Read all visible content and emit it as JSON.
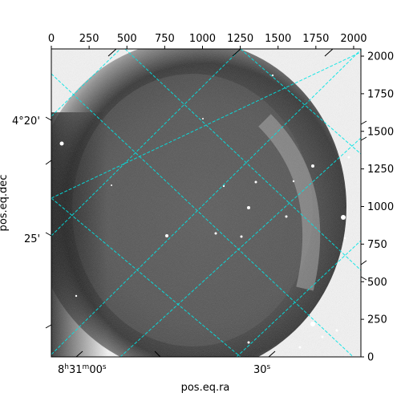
{
  "chart_data": {
    "type": "heatmap",
    "image_description_colormap": "gray",
    "pixel_axes": {
      "x_range": [
        0,
        2048
      ],
      "y_range": [
        0,
        2048
      ],
      "x_ticks": [
        0,
        250,
        500,
        750,
        1000,
        1250,
        1500,
        1750,
        2000
      ],
      "y_ticks": [
        0,
        250,
        500,
        750,
        1000,
        1250,
        1500,
        1750,
        2000
      ],
      "x_tick_labels": [
        "0",
        "250",
        "500",
        "750",
        "1000",
        "1250",
        "1500",
        "1750",
        "2000"
      ],
      "y_tick_labels": [
        "0",
        "250",
        "500",
        "750",
        "1000",
        "1250",
        "1500",
        "1750",
        "2000"
      ]
    },
    "world_axes": {
      "xlabel": "pos.eq.ra",
      "ylabel": "pos.eq.dec",
      "ra_tick_labels": [
        {
          "text": "8h31m00s",
          "h": "8",
          "hs": "h",
          "m": "31",
          "ms": "m",
          "s": "00",
          "ss": "s"
        },
        {
          "text": "30s",
          "s": "30",
          "ss": "s"
        }
      ],
      "dec_tick_labels": [
        "4°20'",
        "25'"
      ]
    },
    "grid": true,
    "grid_color": "#00e5e5"
  }
}
